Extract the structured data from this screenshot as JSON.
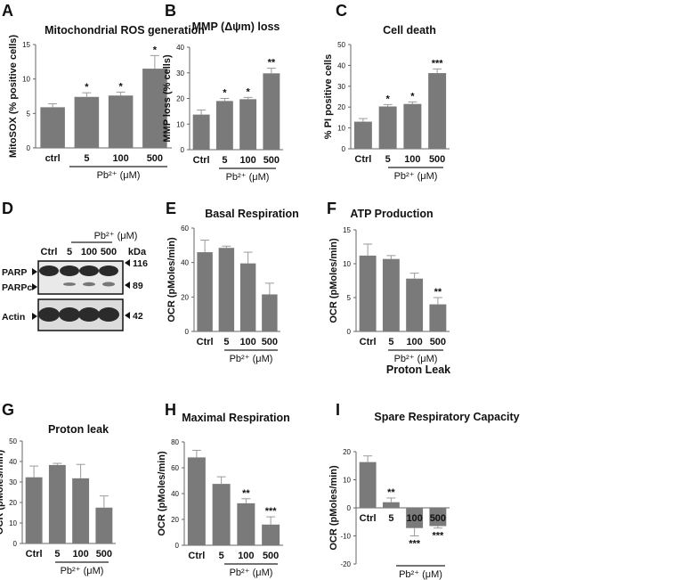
{
  "colors": {
    "bar": "#7a7a7a",
    "axis": "#666666",
    "text": "#111111",
    "error": "#9a9a9a"
  },
  "western_blot": {
    "letter": "D",
    "treatment_label": "Pb²⁺ (μM)",
    "lanes": [
      "Ctrl",
      "5",
      "100",
      "500"
    ],
    "kda_header": "kDa",
    "rows": [
      "PARP",
      "PARPc",
      "Actin"
    ],
    "markers": [
      "116",
      "89",
      "42"
    ]
  },
  "extra_labels": {
    "proton_leak_caption": "Proton Leak"
  },
  "chart_data": [
    {
      "letter": "A",
      "type": "bar",
      "title": "Mitochondrial ROS generation",
      "ylabel": "MitoSOX (% positive cells)",
      "xlabel": "Pb²⁺ (μM)",
      "categories": [
        "ctrl",
        "5",
        "100",
        "500"
      ],
      "values": [
        5.9,
        7.4,
        7.6,
        11.5
      ],
      "errors": [
        0.5,
        0.6,
        0.5,
        1.9
      ],
      "significance": [
        "",
        "*",
        "*",
        "*"
      ],
      "ylim": [
        0,
        15
      ],
      "yticks": [
        0,
        5,
        10,
        15
      ]
    },
    {
      "letter": "B",
      "type": "bar",
      "title": "MMP (Δψm) loss",
      "ylabel": "MMP loss (% cells)",
      "xlabel": "Pb²⁺ (μM)",
      "categories": [
        "Ctrl",
        "5",
        "100",
        "500"
      ],
      "values": [
        13.7,
        19.0,
        19.7,
        29.8
      ],
      "errors": [
        1.8,
        1.0,
        0.7,
        2.0
      ],
      "significance": [
        "",
        "*",
        "*",
        "**"
      ],
      "ylim": [
        0,
        40
      ],
      "yticks": [
        0,
        10,
        20,
        30,
        40
      ]
    },
    {
      "letter": "C",
      "type": "bar",
      "title": "Cell death",
      "ylabel": "% PI positive cells",
      "xlabel": "Pb²⁺ (μM)",
      "categories": [
        "Ctrl",
        "5",
        "100",
        "500"
      ],
      "values": [
        13.0,
        20.3,
        21.5,
        36.3
      ],
      "errors": [
        1.5,
        0.9,
        1.0,
        2.0
      ],
      "significance": [
        "",
        "*",
        "*",
        "***"
      ],
      "ylim": [
        0,
        50
      ],
      "yticks": [
        0,
        10,
        20,
        30,
        40,
        50
      ]
    },
    {
      "letter": "E",
      "type": "bar",
      "title": "Basal Respiration",
      "ylabel": "OCR (pMoles/min)",
      "xlabel": "Pb²⁺ (μM)",
      "categories": [
        "Ctrl",
        "5",
        "100",
        "500"
      ],
      "values": [
        46,
        48.5,
        39.5,
        21.5
      ],
      "errors": [
        7,
        1,
        6.5,
        6.5
      ],
      "significance": [
        "",
        "",
        "",
        ""
      ],
      "ylim": [
        0,
        60
      ],
      "yticks": [
        0,
        20,
        40,
        60
      ]
    },
    {
      "letter": "F",
      "type": "bar",
      "title": "ATP Production",
      "ylabel": "OCR (pMoles/min)",
      "xlabel": "Pb²⁺ (μM)",
      "categories": [
        "Ctrl",
        "5",
        "100",
        "500"
      ],
      "values": [
        11.2,
        10.7,
        7.8,
        4.0
      ],
      "errors": [
        1.7,
        0.5,
        0.8,
        1.0
      ],
      "significance": [
        "",
        "",
        "",
        "**"
      ],
      "ylim": [
        0,
        15
      ],
      "yticks": [
        0,
        5,
        10,
        15
      ]
    },
    {
      "letter": "G",
      "type": "bar",
      "title": "Proton leak",
      "ylabel": "OCR (pMoles/min)",
      "xlabel": "Pb²⁺ (μM)",
      "categories": [
        "Ctrl",
        "5",
        "100",
        "500"
      ],
      "values": [
        32.3,
        38.3,
        31.8,
        17.5
      ],
      "errors": [
        5.5,
        0.8,
        6.8,
        5.7
      ],
      "significance": [
        "",
        "",
        "",
        ""
      ],
      "ylim": [
        0,
        50
      ],
      "yticks": [
        0,
        10,
        20,
        30,
        40,
        50
      ]
    },
    {
      "letter": "H",
      "type": "bar",
      "title": "Maximal Respiration",
      "ylabel": "OCR (pMoles/min)",
      "xlabel": "Pb²⁺ (μM)",
      "categories": [
        "Ctrl",
        "5",
        "100",
        "500"
      ],
      "values": [
        68,
        47.5,
        32.5,
        16
      ],
      "errors": [
        5.5,
        5.5,
        3.5,
        6
      ],
      "significance": [
        "",
        "",
        "**",
        "***"
      ],
      "ylim": [
        0,
        80
      ],
      "yticks": [
        0,
        20,
        40,
        60,
        80
      ]
    },
    {
      "letter": "I",
      "type": "bar",
      "title": "Spare Respiratory Capacity",
      "ylabel": "OCR (pMoles/min)",
      "xlabel": "Pb²⁺ (μM)",
      "categories": [
        "Ctrl",
        "5",
        "100",
        "500"
      ],
      "values": [
        16.3,
        2.0,
        -7.2,
        -6.5
      ],
      "errors": [
        2.2,
        1.5,
        2.8,
        0.7
      ],
      "significance": [
        "",
        "**",
        "***",
        "***"
      ],
      "ylim": [
        -20,
        20
      ],
      "yticks": [
        -20,
        -10,
        0,
        10,
        20
      ]
    }
  ]
}
